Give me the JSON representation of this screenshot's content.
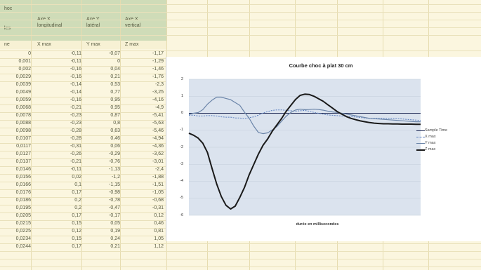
{
  "header": {
    "title_fragment": "hoc",
    "row_fragment": "les",
    "unit_fragment": "ne",
    "col1_line1": "Axe X",
    "col1_line2": "longitudinal",
    "col2_line1": "Axe Y",
    "col2_line2": "latéral",
    "col3_line1": "Axe X",
    "col3_line2": "vertical",
    "col1_sub": "X max",
    "col2_sub": "Y max",
    "col3_sub": "Z max"
  },
  "rows": [
    [
      "0",
      "-0,11",
      "-0,07",
      "-1,17"
    ],
    [
      "0,001",
      "-0,11",
      "0",
      "-1,29"
    ],
    [
      "0,002",
      "-0,16",
      "0,04",
      "-1,46"
    ],
    [
      "0,0029",
      "-0,16",
      "0,21",
      "-1,76"
    ],
    [
      "0,0039",
      "-0,14",
      "0,53",
      "-2,3"
    ],
    [
      "0,0049",
      "-0,14",
      "0,77",
      "-3,25"
    ],
    [
      "0,0059",
      "-0,16",
      "0,95",
      "-4,16"
    ],
    [
      "0,0068",
      "-0,21",
      "0,95",
      "-4,9"
    ],
    [
      "0,0078",
      "-0,23",
      "0,87",
      "-5,41"
    ],
    [
      "0,0088",
      "-0,23",
      "0,8",
      "-5,63"
    ],
    [
      "0,0098",
      "-0,28",
      "0,63",
      "-5,46"
    ],
    [
      "0,0107",
      "-0,28",
      "0,46",
      "-4,94"
    ],
    [
      "0,0117",
      "-0,31",
      "0,06",
      "-4,36"
    ],
    [
      "0,0127",
      "-0,26",
      "-0,29",
      "-3,62"
    ],
    [
      "0,0137",
      "-0,21",
      "-0,76",
      "-3,01"
    ],
    [
      "0,0146",
      "-0,11",
      "-1,13",
      "-2,4"
    ],
    [
      "0,0156",
      "0,02",
      "-1,2",
      "-1,88"
    ],
    [
      "0,0166",
      "0,1",
      "-1,15",
      "-1,51"
    ],
    [
      "0,0176",
      "0,17",
      "-0,98",
      "-1,05"
    ],
    [
      "0,0186",
      "0,2",
      "-0,78",
      "-0,68"
    ],
    [
      "0,0195",
      "0,2",
      "-0,47",
      "-0,31"
    ],
    [
      "0,0205",
      "0,17",
      "-0,17",
      "0,12"
    ],
    [
      "0,0215",
      "0,15",
      "0,05",
      "0,46"
    ],
    [
      "0,0225",
      "0,12",
      "0,19",
      "0,81"
    ],
    [
      "0,0234",
      "0,15",
      "0,24",
      "1,05"
    ],
    [
      "0,0244",
      "0,17",
      "0,21",
      "1,12"
    ]
  ],
  "chart_data": {
    "type": "line",
    "title": "Courbe choc à plat 30 cm",
    "xlabel": "durée en millisecondes",
    "ylabel": "",
    "ylim": [
      -6,
      2
    ],
    "yticks": [
      "2",
      "1",
      "0",
      "-1",
      "-2",
      "-3",
      "-4",
      "-5",
      "-6"
    ],
    "grid": true,
    "legend_position": "right",
    "x": [
      0,
      1,
      2,
      3,
      4,
      5,
      6,
      7,
      8,
      9,
      10,
      11,
      12,
      13,
      14,
      15,
      16,
      17,
      18,
      19,
      20,
      21,
      22,
      23,
      24,
      25,
      26,
      27,
      28,
      29,
      30,
      31,
      32,
      33,
      34,
      35,
      36,
      37,
      38,
      39,
      40,
      41,
      42,
      43,
      44,
      45,
      46,
      47,
      48,
      49,
      50
    ],
    "series": [
      {
        "name": "Sample Time",
        "color": "#1f2a55",
        "width": 1,
        "dash": "",
        "values": [
          0,
          0,
          0,
          0,
          0,
          0,
          0,
          0,
          0,
          0,
          0,
          0,
          0,
          0,
          0,
          0,
          0,
          0,
          0,
          0,
          0,
          0,
          0,
          0,
          0,
          0,
          0,
          0,
          0,
          0,
          0,
          0,
          0,
          0,
          0,
          0,
          0,
          0,
          0,
          0,
          0,
          0,
          0,
          0,
          0,
          0,
          0,
          0,
          0,
          0,
          0
        ]
      },
      {
        "name": "X max",
        "color": "#5b7fbf",
        "width": 1,
        "dash": "2,1.5",
        "values": [
          -0.11,
          -0.11,
          -0.16,
          -0.16,
          -0.14,
          -0.14,
          -0.16,
          -0.21,
          -0.23,
          -0.23,
          -0.28,
          -0.28,
          -0.31,
          -0.26,
          -0.21,
          -0.11,
          0.02,
          0.1,
          0.17,
          0.2,
          0.2,
          0.17,
          0.15,
          0.12,
          0.15,
          0.17,
          0.12,
          0.05,
          0.0,
          -0.05,
          -0.1,
          -0.12,
          -0.14,
          -0.16,
          -0.18,
          -0.2,
          -0.22,
          -0.25,
          -0.28,
          -0.3,
          -0.3,
          -0.3,
          -0.3,
          -0.3,
          -0.3,
          -0.32,
          -0.34,
          -0.36,
          -0.38,
          -0.4,
          -0.42
        ]
      },
      {
        "name": "Y max",
        "color": "#6a84a8",
        "width": 1.2,
        "dash": "",
        "values": [
          -0.07,
          0,
          0.04,
          0.21,
          0.53,
          0.77,
          0.95,
          0.95,
          0.87,
          0.8,
          0.63,
          0.46,
          0.06,
          -0.29,
          -0.76,
          -1.13,
          -1.2,
          -1.15,
          -0.98,
          -0.78,
          -0.47,
          -0.17,
          0.05,
          0.19,
          0.24,
          0.21,
          0.22,
          0.24,
          0.22,
          0.18,
          0.12,
          0.08,
          0.05,
          0.0,
          -0.05,
          -0.1,
          -0.15,
          -0.2,
          -0.25,
          -0.3,
          -0.32,
          -0.34,
          -0.36,
          -0.38,
          -0.4,
          -0.42,
          -0.44,
          -0.46,
          -0.48,
          -0.5,
          -0.5
        ]
      },
      {
        "name": "Z max",
        "color": "#1a1a1a",
        "width": 2,
        "dash": "",
        "values": [
          -1.17,
          -1.29,
          -1.46,
          -1.76,
          -2.3,
          -3.25,
          -4.16,
          -4.9,
          -5.41,
          -5.63,
          -5.46,
          -4.94,
          -4.36,
          -3.62,
          -3.01,
          -2.4,
          -1.88,
          -1.51,
          -1.05,
          -0.68,
          -0.31,
          0.12,
          0.46,
          0.81,
          1.05,
          1.12,
          1.1,
          1.0,
          0.85,
          0.7,
          0.5,
          0.3,
          0.1,
          -0.05,
          -0.2,
          -0.3,
          -0.38,
          -0.45,
          -0.5,
          -0.55,
          -0.58,
          -0.6,
          -0.62,
          -0.62,
          -0.63,
          -0.63,
          -0.64,
          -0.64,
          -0.64,
          -0.65,
          -0.65
        ]
      }
    ]
  }
}
